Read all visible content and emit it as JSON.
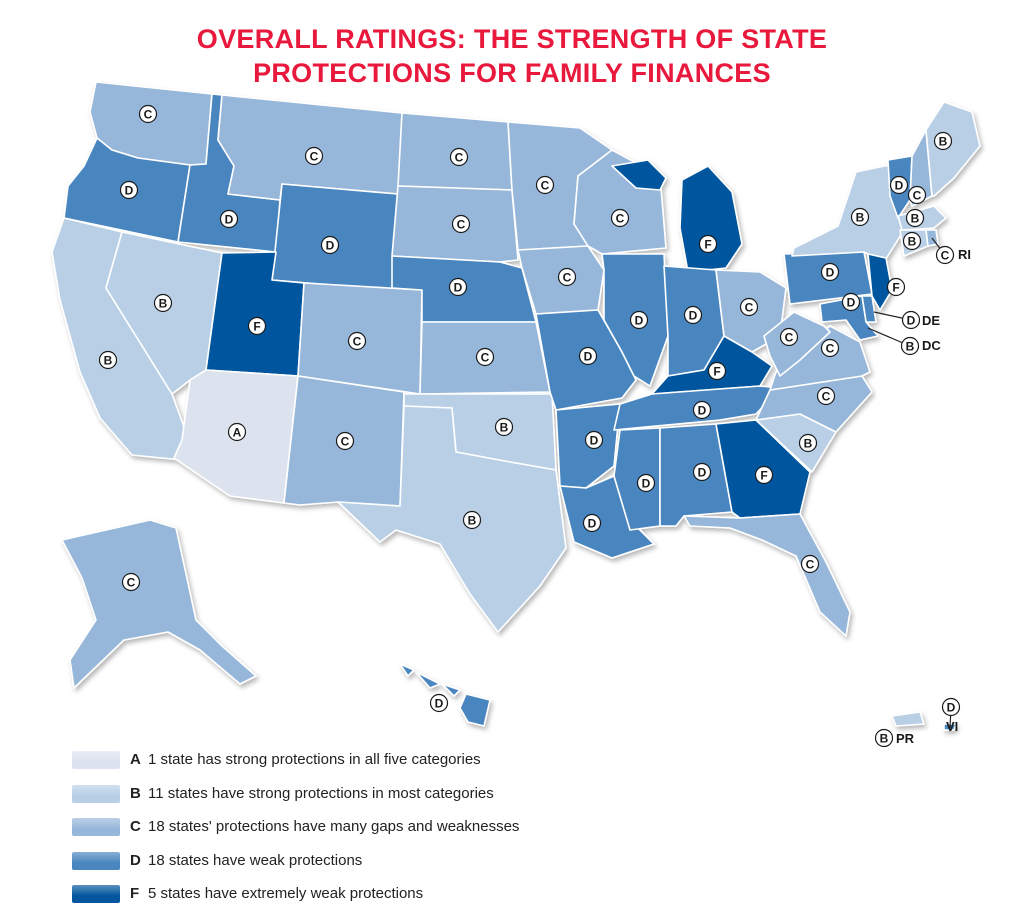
{
  "title": {
    "line1": "OVERALL RATINGS: THE STRENGTH OF STATE",
    "line2": "PROTECTIONS FOR FAMILY FINANCES"
  },
  "colors": {
    "A": "#dde3ee",
    "B": "#b8cfe6",
    "C": "#97b7da",
    "D": "#4a86c0",
    "F": "#03569e",
    "title": "#e8193c"
  },
  "states": [
    {
      "abbr": "WA",
      "grade": "C"
    },
    {
      "abbr": "OR",
      "grade": "D"
    },
    {
      "abbr": "CA",
      "grade": "B"
    },
    {
      "abbr": "NV",
      "grade": "B"
    },
    {
      "abbr": "ID",
      "grade": "D"
    },
    {
      "abbr": "MT",
      "grade": "C"
    },
    {
      "abbr": "WY",
      "grade": "D"
    },
    {
      "abbr": "UT",
      "grade": "F"
    },
    {
      "abbr": "AZ",
      "grade": "A"
    },
    {
      "abbr": "CO",
      "grade": "C"
    },
    {
      "abbr": "NM",
      "grade": "C"
    },
    {
      "abbr": "ND",
      "grade": "C"
    },
    {
      "abbr": "SD",
      "grade": "C"
    },
    {
      "abbr": "NE",
      "grade": "D"
    },
    {
      "abbr": "KS",
      "grade": "C"
    },
    {
      "abbr": "OK",
      "grade": "B"
    },
    {
      "abbr": "TX",
      "grade": "B"
    },
    {
      "abbr": "MN",
      "grade": "C"
    },
    {
      "abbr": "IA",
      "grade": "C"
    },
    {
      "abbr": "MO",
      "grade": "D"
    },
    {
      "abbr": "AR",
      "grade": "D"
    },
    {
      "abbr": "LA",
      "grade": "D"
    },
    {
      "abbr": "WI",
      "grade": "C"
    },
    {
      "abbr": "IL",
      "grade": "D"
    },
    {
      "abbr": "MI",
      "grade": "F"
    },
    {
      "abbr": "IN",
      "grade": "D"
    },
    {
      "abbr": "OH",
      "grade": "C"
    },
    {
      "abbr": "KY",
      "grade": "F"
    },
    {
      "abbr": "TN",
      "grade": "D"
    },
    {
      "abbr": "MS",
      "grade": "D"
    },
    {
      "abbr": "AL",
      "grade": "D"
    },
    {
      "abbr": "GA",
      "grade": "F"
    },
    {
      "abbr": "FL",
      "grade": "C"
    },
    {
      "abbr": "SC",
      "grade": "B"
    },
    {
      "abbr": "NC",
      "grade": "C"
    },
    {
      "abbr": "VA",
      "grade": "C"
    },
    {
      "abbr": "WV",
      "grade": "C"
    },
    {
      "abbr": "PA",
      "grade": "D"
    },
    {
      "abbr": "NY",
      "grade": "B"
    },
    {
      "abbr": "VT",
      "grade": "D"
    },
    {
      "abbr": "NH",
      "grade": "C"
    },
    {
      "abbr": "ME",
      "grade": "B"
    },
    {
      "abbr": "MA",
      "grade": "B"
    },
    {
      "abbr": "CT",
      "grade": "B"
    },
    {
      "abbr": "RI",
      "grade": "C"
    },
    {
      "abbr": "NJ",
      "grade": "F"
    },
    {
      "abbr": "DE",
      "grade": "D"
    },
    {
      "abbr": "MD",
      "grade": "D"
    },
    {
      "abbr": "DC",
      "grade": "B"
    },
    {
      "abbr": "AK",
      "grade": "C"
    },
    {
      "abbr": "HI",
      "grade": "D"
    },
    {
      "abbr": "PR",
      "grade": "B"
    },
    {
      "abbr": "VI",
      "grade": "D"
    }
  ],
  "callout_labels": {
    "RI": "RI",
    "DE": "DE",
    "DC": "DC",
    "PR": "PR",
    "VI": "VI"
  },
  "legend": [
    {
      "grade": "A",
      "text": "1 state has strong protections in all five categories"
    },
    {
      "grade": "B",
      "text": "11 states have strong protections in most categories"
    },
    {
      "grade": "C",
      "text": "18 states' protections have many gaps and weaknesses"
    },
    {
      "grade": "D",
      "text": "18 states have weak protections"
    },
    {
      "grade": "F",
      "text": "5 states have extremely weak protections"
    }
  ]
}
